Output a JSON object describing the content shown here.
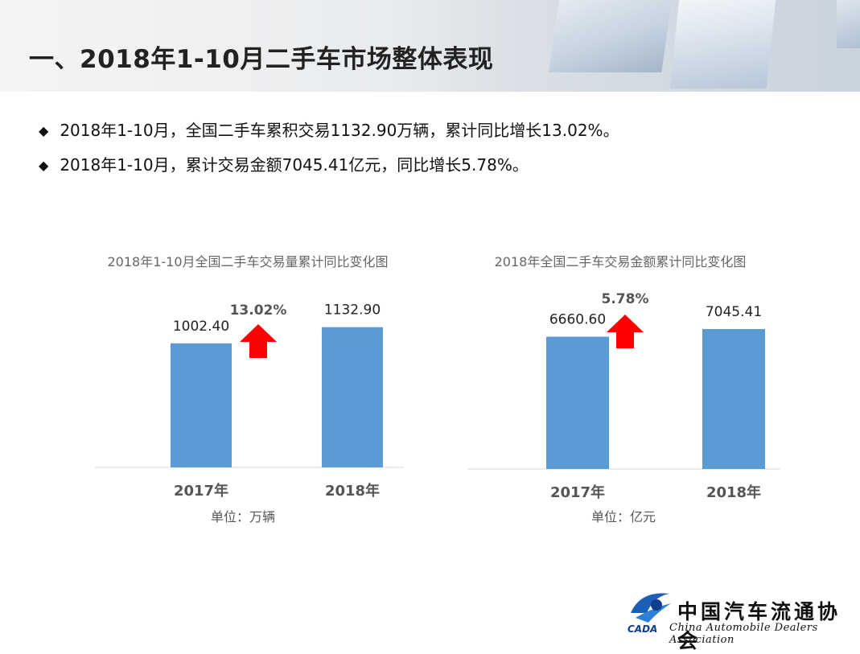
{
  "header": {
    "title": "一、2018年1-10月二手车市场整体表现"
  },
  "bullets": [
    "2018年1-10月，全国二手车累积交易1132.90万辆，累计同比增长13.02%。",
    "2018年1-10月，累计交易金额7045.41亿元，同比增长5.78%。"
  ],
  "bullet_symbol": "◆",
  "chart_data": [
    {
      "type": "bar",
      "title": "2018年1-10月全国二手车交易量累计同比变化图",
      "categories": [
        "2017年",
        "2018年"
      ],
      "values": [
        1002.4,
        1132.9
      ],
      "value_labels": [
        "1002.40",
        "1132.90"
      ],
      "growth_label": "13.02%",
      "unit_label": "单位：万辆",
      "ylim": [
        0,
        1300
      ],
      "bar_color": "#5b9bd5",
      "arrow_color": "#ff0000"
    },
    {
      "type": "bar",
      "title": "2018年全国二手车交易金额累计同比变化图",
      "categories": [
        "2017年",
        "2018年"
      ],
      "values": [
        6660.6,
        7045.41
      ],
      "value_labels": [
        "6660.60",
        "7045.41"
      ],
      "growth_label": "5.78%",
      "unit_label": "单位：亿元",
      "ylim": [
        0,
        8100
      ],
      "bar_color": "#5b9bd5",
      "arrow_color": "#ff0000"
    }
  ],
  "logo": {
    "mark_text": "CADA",
    "name_cn": "中国汽车流通协会",
    "name_en": "China Automobile Dealers Association"
  }
}
